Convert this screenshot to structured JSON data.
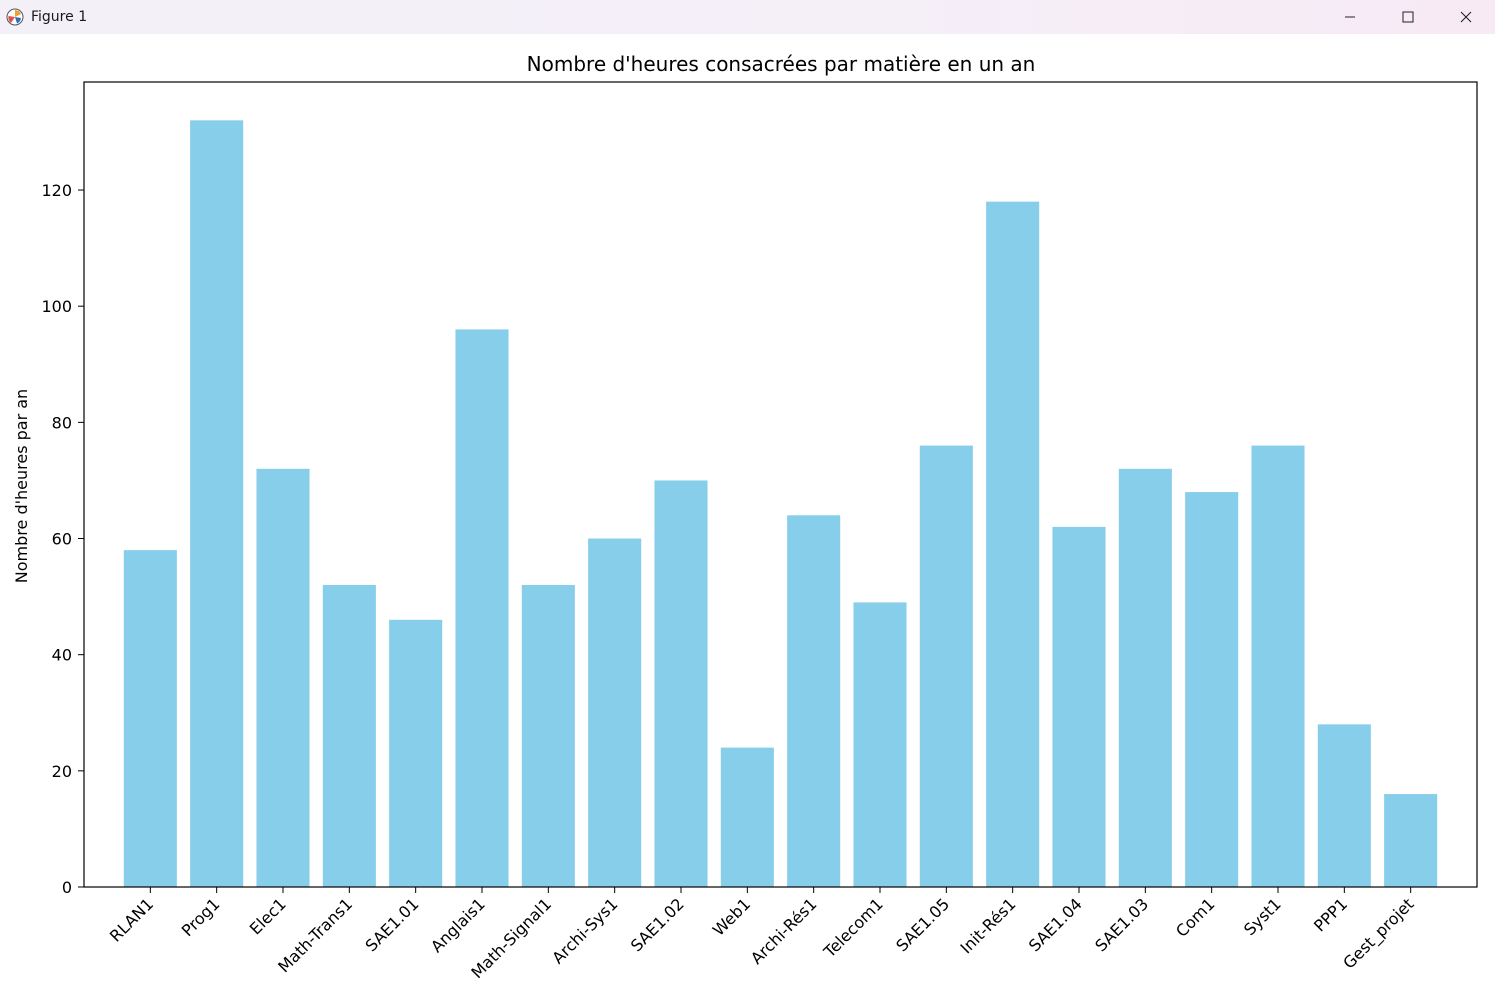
{
  "window": {
    "title": "Figure 1",
    "icons": {
      "app": "matplotlib-logo-icon",
      "minimize": "minimize-icon",
      "maximize": "maximize-icon",
      "close": "close-icon"
    }
  },
  "chart_data": {
    "type": "bar",
    "title": "Nombre d'heures consacrées par matière en un an",
    "xlabel": "",
    "ylabel": "Nombre d'heures par an",
    "categories": [
      "RLAN1",
      "Prog1",
      "Elec1",
      "Math-Trans1",
      "SAE1.01",
      "Anglais1",
      "Math-Signal1",
      "Archi-Sys1",
      "SAE1.02",
      "Web1",
      "Archi-Rés1",
      "Telecom1",
      "SAE1.05",
      "Init-Rés1",
      "SAE1.04",
      "SAE1.03",
      "Com1",
      "Syst1",
      "PPP1",
      "Gest_projet"
    ],
    "values": [
      58,
      132,
      72,
      52,
      46,
      96,
      52,
      60,
      70,
      24,
      64,
      49,
      76,
      118,
      62,
      72,
      68,
      76,
      28,
      16
    ],
    "yticks": [
      0,
      20,
      40,
      60,
      80,
      100,
      120
    ],
    "ylim": [
      0,
      138.6
    ],
    "grid": false,
    "bar_color": "#87ceeb",
    "x_tick_rotation_deg": 45
  }
}
